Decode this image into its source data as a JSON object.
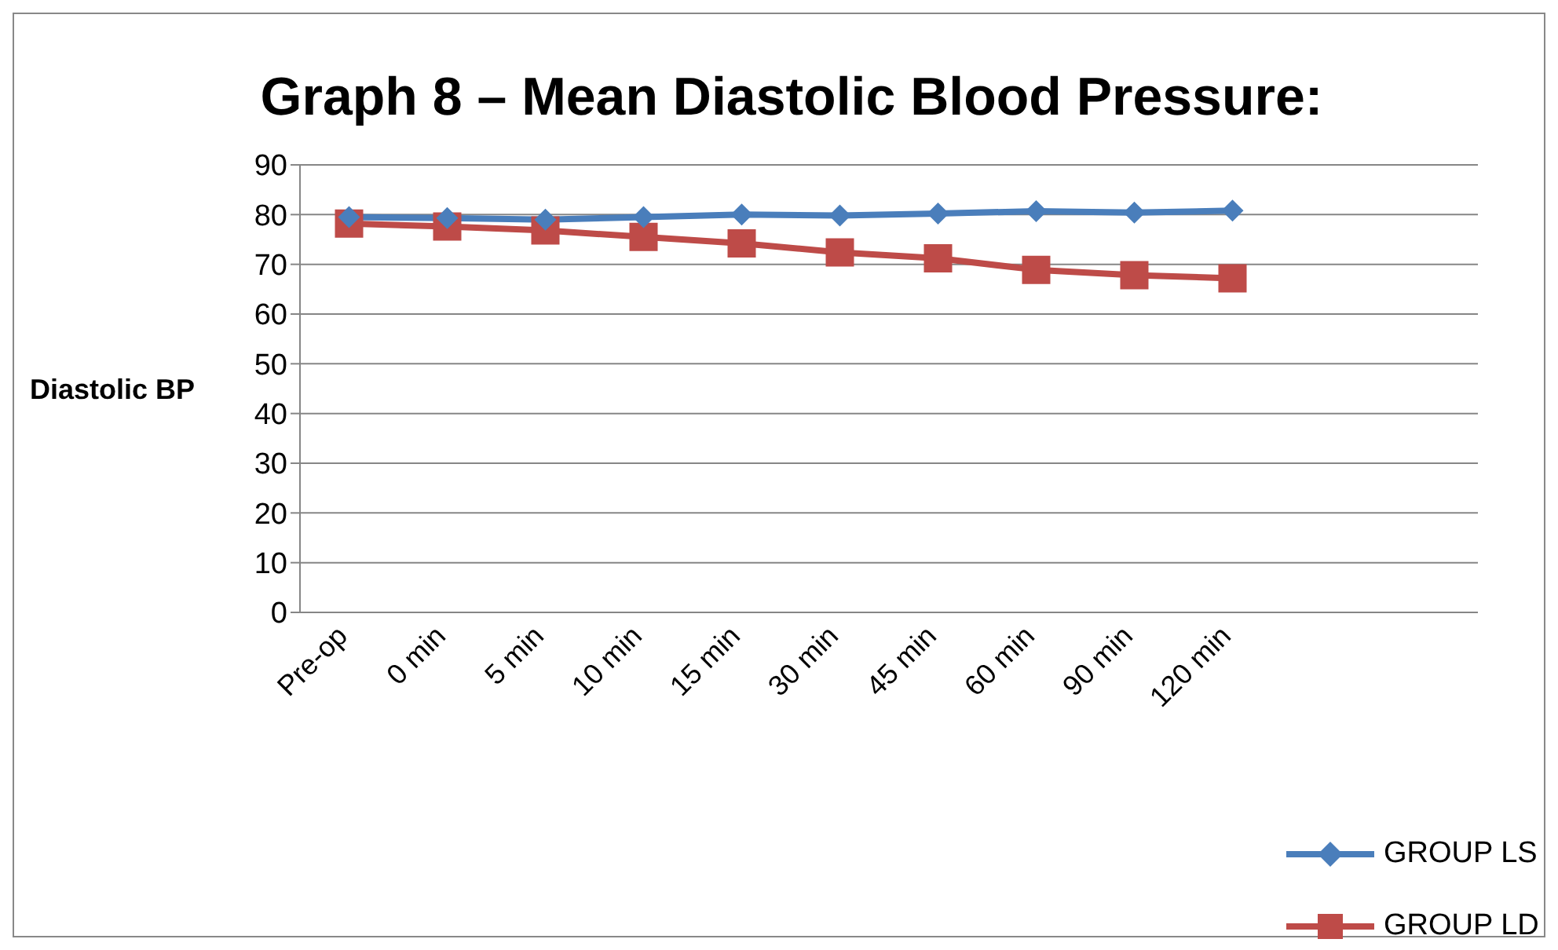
{
  "chart_data": {
    "type": "line",
    "title": "Graph 8 – Mean Diastolic Blood Pressure:",
    "ylabel": "Diastolic BP",
    "categories": [
      "Pre-op",
      "0 min",
      "5 min",
      "10 min",
      "15 min",
      "30 min",
      "45 min",
      "60 min",
      "90 min",
      "120 min",
      null,
      null
    ],
    "series": [
      {
        "name": "GROUP LS",
        "color": "#4a7ebb",
        "marker": "diamond",
        "values": [
          79.5,
          79.3,
          79,
          79.5,
          80,
          79.8,
          80.2,
          80.7,
          80.4,
          80.8,
          null,
          null
        ]
      },
      {
        "name": "GROUP LD",
        "color": "#be4b48",
        "marker": "square",
        "values": [
          78.2,
          77.6,
          76.8,
          75.5,
          74.2,
          72.4,
          71.2,
          68.9,
          67.8,
          67.2,
          null,
          null
        ]
      }
    ],
    "ylim": [
      0,
      90
    ],
    "yticks": [
      0,
      10,
      20,
      30,
      40,
      50,
      60,
      70,
      80,
      90
    ],
    "grid": "y",
    "legend": "bottom right",
    "line_style": "solid"
  }
}
